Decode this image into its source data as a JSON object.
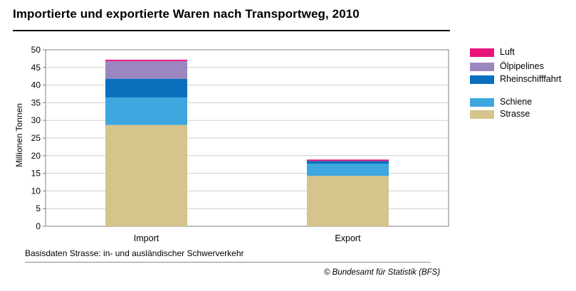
{
  "chart_data": {
    "type": "bar",
    "stacked": true,
    "title": "Importierte und exportierte Waren nach Transportweg, 2010",
    "ylabel": "Millionen Tonnen",
    "xlabel": "",
    "categories": [
      "Import",
      "Export"
    ],
    "ylim": [
      0,
      50
    ],
    "yticks": [
      0,
      5,
      10,
      15,
      20,
      25,
      30,
      35,
      40,
      45,
      50
    ],
    "grid": true,
    "legend_position": "right",
    "series": [
      {
        "name": "Strasse",
        "values": [
          28.7,
          14.3
        ],
        "color": "#d5c48c"
      },
      {
        "name": "Schiene",
        "values": [
          7.8,
          3.4
        ],
        "color": "#3ea7e0"
      },
      {
        "name": "Rheinschifffahrt",
        "values": [
          5.3,
          0.8
        ],
        "color": "#0a70be"
      },
      {
        "name": "Ölpipelines",
        "values": [
          5.0,
          0.0
        ],
        "color": "#9c86c0"
      },
      {
        "name": "Luft",
        "values": [
          0.4,
          0.4
        ],
        "color": "#e8147a"
      }
    ],
    "legend_order": [
      "Luft",
      "Ölpipelines",
      "Rheinschifffahrt",
      "Schiene",
      "Strasse"
    ]
  },
  "footnote": "Basisdaten Strasse: in- und ausländischer Schwerverkehr",
  "source": "© Bundesamt für Statistik (BFS)"
}
